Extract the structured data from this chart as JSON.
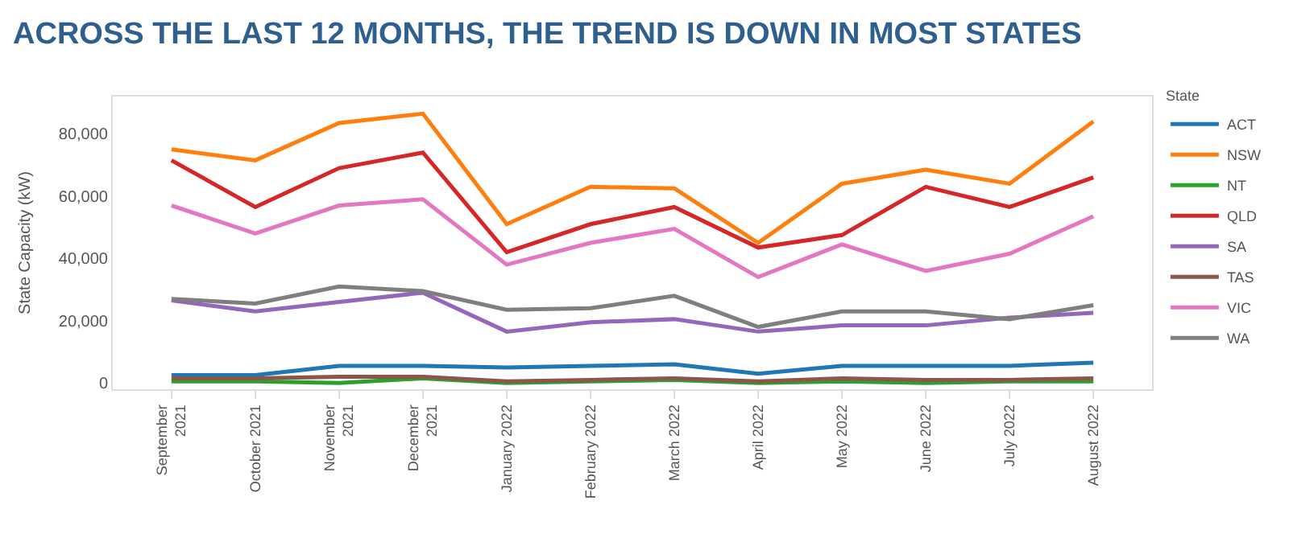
{
  "chart_data": {
    "type": "line",
    "title": "ACROSS THE LAST 12 MONTHS, THE TREND IS DOWN IN MOST STATES",
    "ylabel": "State Capacity (kW)",
    "legend_title": "State",
    "categories": [
      "September\n2021",
      "October 2021",
      "November\n2021",
      "December\n2021",
      "January 2022",
      "February 2022",
      "March 2022",
      "April 2022",
      "May 2022",
      "June 2022",
      "July 2022",
      "August 2022"
    ],
    "series": [
      {
        "name": "ACT",
        "color": "#1f77b4",
        "values": [
          2500,
          2500,
          5500,
          5500,
          5000,
          5500,
          6000,
          3000,
          5500,
          5500,
          5500,
          6500
        ]
      },
      {
        "name": "NSW",
        "color": "#ff7f0e",
        "values": [
          75000,
          71500,
          83500,
          86500,
          51000,
          63000,
          62500,
          45000,
          64000,
          68500,
          64000,
          84000
        ]
      },
      {
        "name": "NT",
        "color": "#2ca02c",
        "values": [
          500,
          500,
          0,
          1500,
          0,
          500,
          1000,
          0,
          500,
          0,
          500,
          500
        ]
      },
      {
        "name": "QLD",
        "color": "#d62728",
        "values": [
          71500,
          56500,
          69000,
          74000,
          42000,
          51000,
          56500,
          43500,
          47500,
          63000,
          56500,
          66000
        ]
      },
      {
        "name": "SA",
        "color": "#9467bd",
        "values": [
          26500,
          23000,
          26000,
          29000,
          16500,
          19500,
          20500,
          16500,
          18500,
          18500,
          21000,
          22500
        ]
      },
      {
        "name": "TAS",
        "color": "#8c564b",
        "values": [
          1500,
          1500,
          2000,
          2000,
          500,
          1000,
          1500,
          500,
          1500,
          1000,
          1000,
          1500
        ]
      },
      {
        "name": "VIC",
        "color": "#e377c2",
        "values": [
          57000,
          48000,
          57000,
          59000,
          38000,
          45000,
          49500,
          34000,
          44500,
          36000,
          41500,
          53500
        ]
      },
      {
        "name": "WA",
        "color": "#7f7f7f",
        "values": [
          27000,
          25500,
          31000,
          29500,
          23500,
          24000,
          28000,
          18000,
          23000,
          23000,
          20500,
          25000
        ]
      }
    ],
    "ylim": [
      -2000,
      92000
    ],
    "yticks": [
      {
        "value": 0,
        "label": "0"
      },
      {
        "value": 20000,
        "label": "20,000"
      },
      {
        "value": 40000,
        "label": "40,000"
      },
      {
        "value": 60000,
        "label": "60,000"
      },
      {
        "value": 80000,
        "label": "80,000"
      }
    ],
    "legend": "right"
  }
}
